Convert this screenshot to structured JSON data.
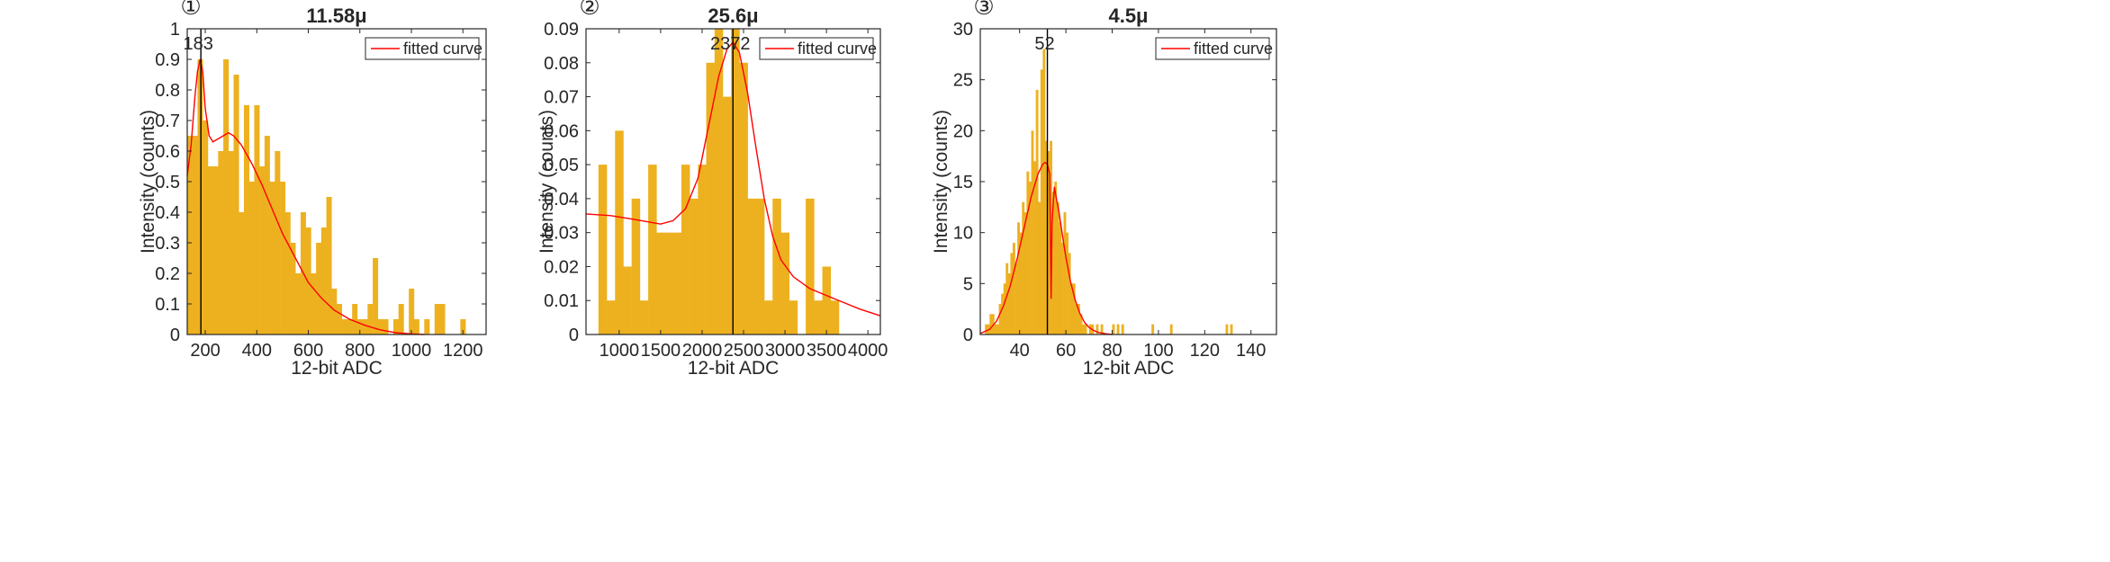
{
  "colors": {
    "bar": "#EDB120",
    "curve": "#FF0000",
    "axis": "#262626",
    "peak_line": "#000000"
  },
  "chart_data": [
    {
      "type": "bar",
      "marker": "①",
      "title": "11.58μ",
      "xlabel": "12-bit ADC",
      "ylabel": "Intensity (counts)",
      "xlim": [
        130,
        1290
      ],
      "ylim": [
        0,
        1
      ],
      "xticks": [
        200,
        400,
        600,
        800,
        1000,
        1200
      ],
      "yticks": [
        0,
        0.1,
        0.2,
        0.3,
        0.4,
        0.5,
        0.6,
        0.7,
        0.8,
        0.9,
        1
      ],
      "ytick_labels": [
        "0",
        "0.1",
        "0.2",
        "0.3",
        "0.4",
        "0.5",
        "0.6",
        "0.7",
        "0.8",
        "0.9",
        "1"
      ],
      "bin_start": 130,
      "bin_width": 20,
      "values": [
        0.65,
        0.65,
        0.9,
        0.7,
        0.55,
        0.55,
        0.6,
        0.9,
        0.6,
        0.85,
        0.4,
        0.75,
        0.5,
        0.75,
        0.55,
        0.65,
        0.5,
        0.6,
        0.5,
        0.4,
        0.3,
        0.2,
        0.4,
        0.35,
        0.2,
        0.3,
        0.35,
        0.45,
        0.15,
        0.1,
        0.05,
        0.05,
        0.1,
        0.05,
        0.05,
        0.1,
        0.25,
        0.05,
        0.05,
        0.0,
        0.05,
        0.1,
        0.0,
        0.15,
        0.05,
        0.0,
        0.05,
        0.0,
        0.1,
        0.1,
        0.0,
        0.0,
        0.0,
        0.05
      ],
      "fitted_curve": {
        "x": [
          130,
          145,
          160,
          170,
          180,
          190,
          200,
          215,
          230,
          250,
          270,
          290,
          310,
          340,
          380,
          420,
          460,
          500,
          550,
          600,
          650,
          700,
          760,
          820,
          880,
          940,
          1000,
          1050
        ],
        "y": [
          0.52,
          0.62,
          0.78,
          0.86,
          0.9,
          0.86,
          0.74,
          0.65,
          0.63,
          0.64,
          0.65,
          0.66,
          0.65,
          0.62,
          0.56,
          0.49,
          0.41,
          0.33,
          0.25,
          0.17,
          0.12,
          0.08,
          0.05,
          0.03,
          0.015,
          0.006,
          0.002,
          0.0
        ]
      },
      "peak": {
        "x": 183,
        "label": "183"
      },
      "legend": {
        "label": "fitted curve",
        "position": "top-right"
      }
    },
    {
      "type": "bar",
      "marker": "②",
      "title": "25.6μ",
      "xlabel": "12-bit ADC",
      "ylabel": "Intensity (counts)",
      "xlim": [
        600,
        4150
      ],
      "ylim": [
        0,
        0.09
      ],
      "xticks": [
        1000,
        1500,
        2000,
        2500,
        3000,
        3500,
        4000
      ],
      "yticks": [
        0,
        0.01,
        0.02,
        0.03,
        0.04,
        0.05,
        0.06,
        0.07,
        0.08,
        0.09
      ],
      "ytick_labels": [
        "0",
        "0.01",
        "0.02",
        "0.03",
        "0.04",
        "0.05",
        "0.06",
        "0.07",
        "0.08",
        "0.09"
      ],
      "bin_start": 750,
      "bin_width": 100,
      "values": [
        0.05,
        0.01,
        0.06,
        0.02,
        0.04,
        0.01,
        0.05,
        0.03,
        0.03,
        0.03,
        0.05,
        0.04,
        0.05,
        0.08,
        0.09,
        0.07,
        0.09,
        0.08,
        0.04,
        0.04,
        0.01,
        0.04,
        0.03,
        0.01,
        0.0,
        0.04,
        0.01,
        0.02,
        0.01,
        0.0
      ],
      "fitted_curve": {
        "x": [
          600,
          900,
          1200,
          1500,
          1650,
          1800,
          1950,
          2100,
          2200,
          2300,
          2372,
          2450,
          2550,
          2650,
          2750,
          2850,
          2950,
          3100,
          3300,
          3500,
          3700,
          3900,
          4150
        ],
        "y": [
          0.0355,
          0.035,
          0.0338,
          0.0325,
          0.0335,
          0.037,
          0.046,
          0.064,
          0.076,
          0.084,
          0.086,
          0.083,
          0.071,
          0.055,
          0.04,
          0.029,
          0.022,
          0.017,
          0.0135,
          0.0115,
          0.0095,
          0.0075,
          0.0055
        ]
      },
      "peak": {
        "x": 2372,
        "label": "2372"
      },
      "legend": {
        "label": "fitted curve",
        "position": "top-right"
      }
    },
    {
      "type": "bar",
      "marker": "③",
      "title": "4.5μ",
      "xlabel": "12-bit ADC",
      "ylabel": "Intensity (counts)",
      "xlim": [
        23,
        151
      ],
      "ylim": [
        0,
        30
      ],
      "xticks": [
        40,
        60,
        80,
        100,
        120,
        140
      ],
      "yticks": [
        0,
        5,
        10,
        15,
        20,
        25,
        30
      ],
      "ytick_labels": [
        "0",
        "5",
        "10",
        "15",
        "20",
        "25",
        "30"
      ],
      "bin_start": 25,
      "bin_width": 1,
      "values": [
        1,
        1,
        2,
        2,
        1,
        1,
        3,
        4,
        5,
        7,
        6,
        8,
        9,
        7,
        11,
        10,
        13,
        12,
        16,
        15,
        20,
        17,
        24,
        13,
        26,
        28,
        19,
        18,
        19,
        14,
        15,
        13,
        11,
        9,
        12,
        10,
        8,
        5,
        5,
        3,
        3,
        2,
        1,
        1,
        0,
        1,
        1,
        0,
        1,
        0,
        1,
        0,
        0,
        0,
        0,
        1,
        0,
        1,
        0,
        1,
        0,
        0,
        0,
        0,
        0,
        0,
        0,
        0,
        0,
        0,
        0,
        0,
        1,
        0,
        0,
        0,
        0,
        0,
        0,
        0,
        1,
        0,
        0,
        0,
        0,
        0,
        0,
        0,
        0,
        0,
        0,
        0,
        0,
        0,
        0,
        0,
        0,
        0,
        0,
        0,
        0,
        0,
        0,
        0,
        1,
        0,
        1
      ],
      "fitted_curve": {
        "x": [
          23,
          27,
          30,
          33,
          36,
          39,
          42,
          45,
          48,
          50,
          51,
          52,
          53,
          53.6,
          54,
          55,
          56,
          57,
          58,
          59,
          60,
          62,
          64,
          66,
          68,
          70,
          72,
          74,
          77,
          80
        ],
        "y": [
          0.1,
          0.5,
          1.3,
          2.8,
          4.8,
          7.5,
          10.5,
          13.5,
          15.8,
          16.7,
          16.9,
          16.7,
          15.8,
          3.5,
          11,
          14.5,
          13.2,
          12,
          10.5,
          9,
          7.6,
          5.2,
          3.4,
          2.1,
          1.2,
          0.7,
          0.4,
          0.2,
          0.08,
          0.0
        ]
      },
      "peak": {
        "x": 52,
        "label": "52"
      },
      "legend": {
        "label": "fitted curve",
        "position": "top-right"
      }
    }
  ]
}
